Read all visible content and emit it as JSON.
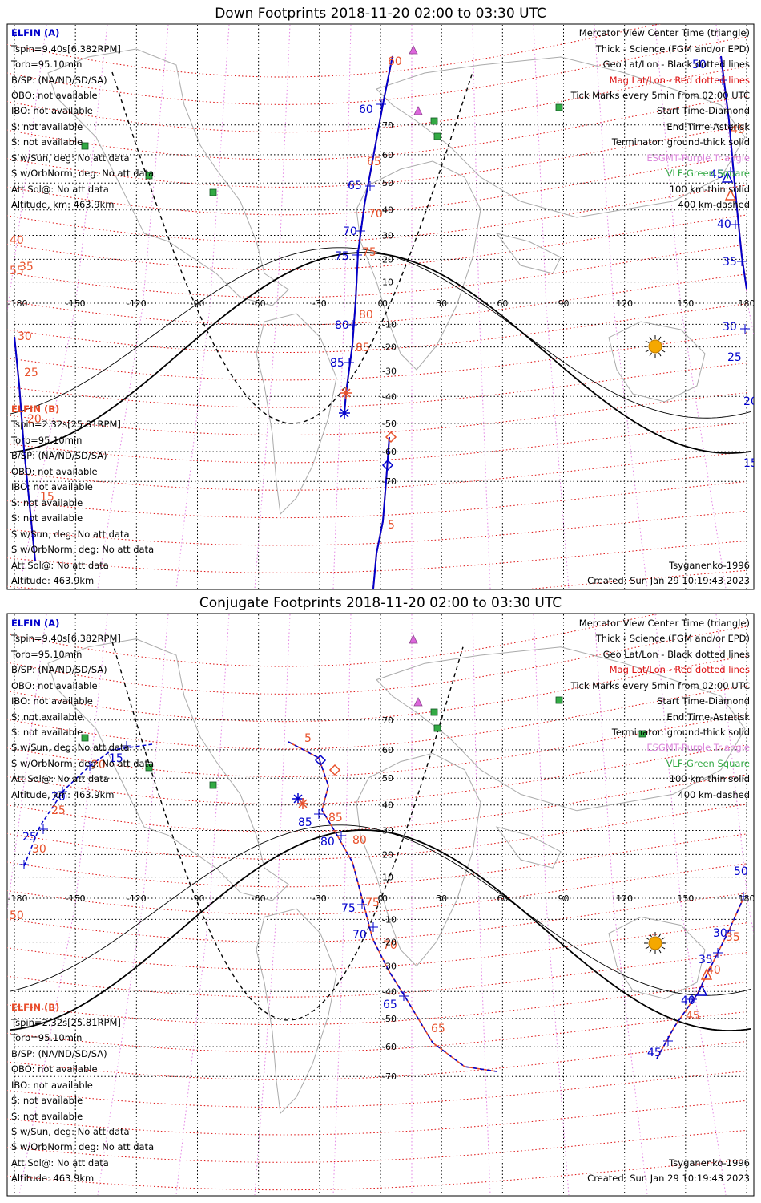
{
  "colors": {
    "probe_a": "#0000cc",
    "probe_b": "#e84c2a",
    "mag_grid": "#dd1111",
    "esgmt": "#dd66dd",
    "vlf": "#33aa44",
    "sun": "#f5a800",
    "coast": "#aaaaaa"
  },
  "icons": {
    "start": "diamond",
    "end": "asterisk",
    "center": "triangle",
    "esgmt_station": "purple-triangle",
    "vlf_station": "green-square",
    "subsolar": "sun-icon"
  },
  "panels": [
    {
      "id": "down",
      "title": "Down Footprints 2018-11-20 02:00 to 03:30 UTC",
      "probe_a": {
        "name": "ELFIN (A)",
        "lines": [
          "Tspin=9.40s[6.382RPM]",
          "Torb=95.10min",
          "B/SP: (NA/ND/SD/SA)",
          "OBO: not available",
          "IBO: not available",
          "S: not available",
          "S: not available",
          "S w/Sun, deg: No att data",
          "S w/OrbNorm, deg: No att data",
          "Att.Sol@: No att data",
          "Altitude, km: 463.9km"
        ]
      },
      "probe_b": {
        "name": "ELFIN (B)",
        "lines": [
          "Tspin=2.32s[25.81RPM]",
          "Torb=95.10min",
          "B/SP: (NA/ND/SD/SA)",
          "OBO: not available",
          "IBO: not available",
          "S: not available",
          "S: not available",
          "S w/Sun, deg: No att data",
          "S w/OrbNorm, deg: No att data",
          "Att.Sol@: No att data",
          "Altitude: 463.9km"
        ]
      },
      "legend": [
        "Mercator View Center Time (triangle)",
        "Thick - Science (FGM and/or EPD)",
        "Geo Lat/Lon - Black dotted lines",
        "Mag Lat/Lon - Red dotted lines",
        "Tick Marks every 5min from 02:00 UTC",
        "Start Time-Diamond",
        "End Time-Asterisk",
        "Terminator: ground-thick solid",
        "ESGMT-Purple Triangle",
        "VLF-Green Square",
        "100 km-thin solid",
        "400 km-dashed"
      ],
      "model": "Tsyganenko-1996",
      "created": "Created: Sun Jan 29 10:19:43 2023",
      "blue_labels": [
        "60",
        "65",
        "70",
        "75",
        "80",
        "85",
        "50",
        "45",
        "40",
        "35",
        "30",
        "25",
        "20",
        "15"
      ],
      "red_labels": [
        "60",
        "65",
        "70",
        "75",
        "80",
        "85",
        "5",
        "55",
        "45",
        "40",
        "35",
        "30",
        "25",
        "20",
        "15"
      ]
    },
    {
      "id": "conj",
      "title": "Conjugate Footprints 2018-11-20 02:00 to 03:30 UTC",
      "probe_a": {
        "name": "ELFIN (A)",
        "lines": [
          "Tspin=9.40s[6.382RPM]",
          "Torb=95.10min",
          "B/SP: (NA/ND/SD/SA)",
          "OBO: not available",
          "IBO: not available",
          "S: not available",
          "S: not available",
          "S w/Sun, deg: No att data",
          "S w/OrbNorm, deg: No att data",
          "Att.Sol@: No att data",
          "Altitude, km: 463.9km"
        ]
      },
      "probe_b": {
        "name": "ELFIN (B)",
        "lines": [
          "Tspin=2.32s[25.81RPM]",
          "Torb=95.10min",
          "B/SP: (NA/ND/SD/SA)",
          "OBO: not available",
          "IBO: not available",
          "S: not available",
          "S: not available",
          "S w/Sun, deg: No att data",
          "S w/OrbNorm, deg: No att data",
          "Att.Sol@: No att data",
          "Altitude: 463.9km"
        ]
      },
      "legend": [
        "Mercator View Center Time (triangle)",
        "Thick - Science (FGM and/or EPD)",
        "Geo Lat/Lon - Black dotted lines",
        "Mag Lat/Lon - Red dotted lines",
        "Tick Marks every 5min from 02:00 UTC",
        "Start Time-Diamond",
        "End Time-Asterisk",
        "Terminator: ground-thick solid",
        "ESGMT-Purple Triangle",
        "VLF-Green Square",
        "100 km-thin solid",
        "400 km-dashed"
      ],
      "model": "Tsyganenko-1996",
      "created": "Created: Sun Jan 29 10:19:43 2023",
      "blue_labels": [
        "15",
        "20",
        "25",
        "85",
        "80",
        "75",
        "70",
        "65",
        "30",
        "35",
        "40",
        "45",
        "50"
      ],
      "red_labels": [
        "5",
        "20",
        "25",
        "30",
        "85",
        "80",
        "75",
        "70",
        "65",
        "35",
        "40",
        "45",
        "50"
      ]
    }
  ],
  "lon_ticks": [
    "-180",
    "-150",
    "-120",
    "-90",
    "-60",
    "-30",
    "0",
    "30",
    "60",
    "90",
    "120",
    "150",
    "180"
  ],
  "lat_ticks_down": [
    "70",
    "60",
    "50",
    "40",
    "30",
    "20",
    "10",
    "0",
    "-10",
    "-20",
    "-30",
    "-40",
    "-50",
    "-60",
    "-70"
  ],
  "lat_ticks_conj": [
    "70",
    "60",
    "50",
    "40",
    "30",
    "20",
    "10",
    "0",
    "-10",
    "-20",
    "-30",
    "-40",
    "-50",
    "-60",
    "-70"
  ]
}
